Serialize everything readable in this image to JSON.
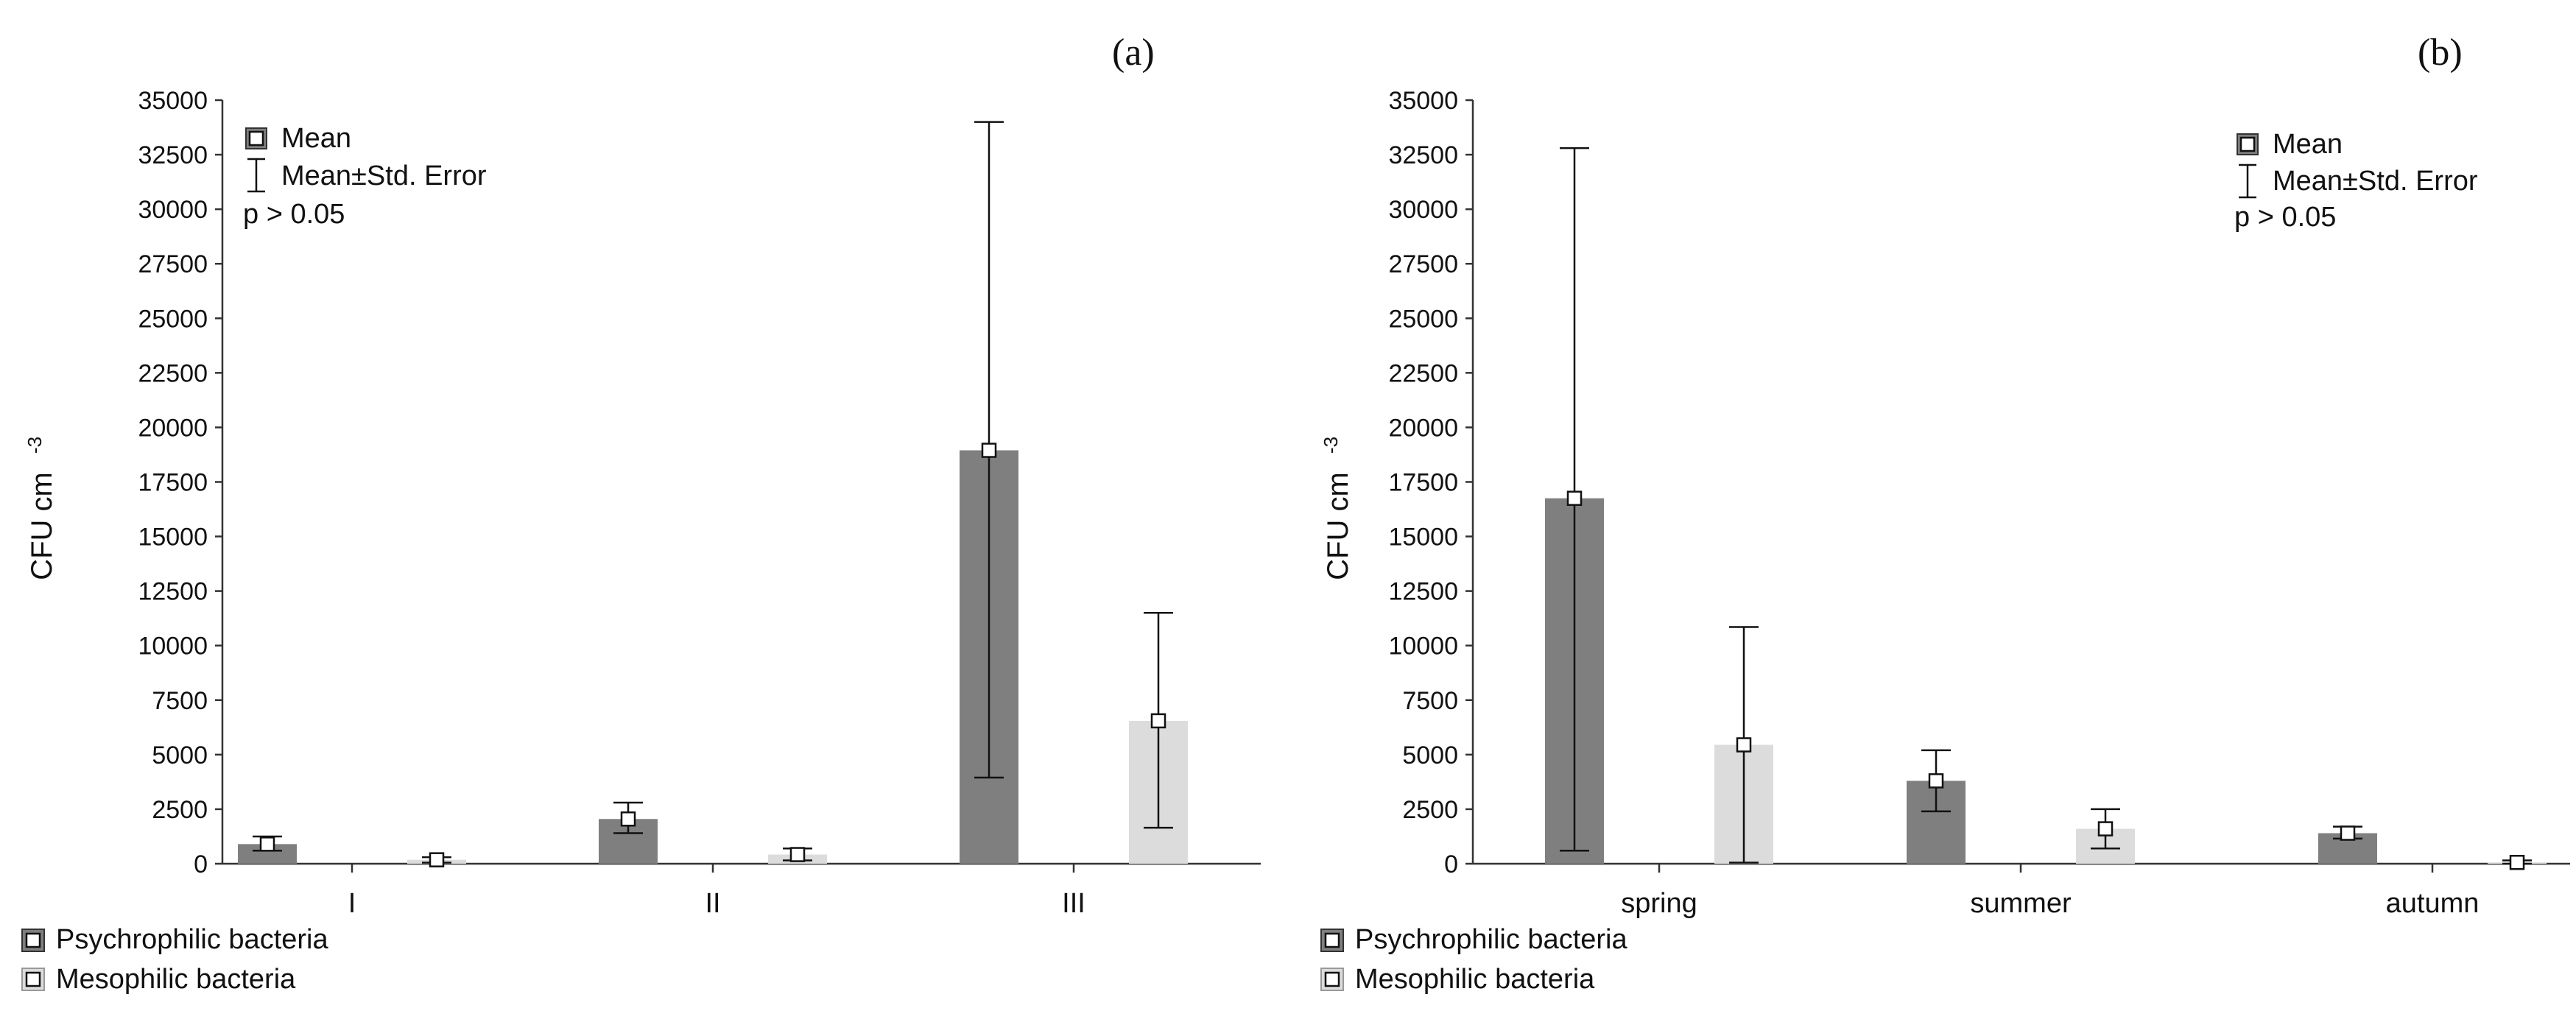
{
  "colors": {
    "psychrophilic": "#7f7f7f",
    "mesophilic": "#dcdcdc",
    "axis": "#333333",
    "text": "#111111"
  },
  "legend": {
    "psychrophilic": "Psychrophilic bacteria",
    "mesophilic": "Mesophilic bacteria"
  },
  "chart_data": [
    {
      "type": "bar",
      "panel_label": "(a)",
      "ylabel": "CFU cm",
      "ylabel_sup": "-3",
      "ylim": [
        0,
        35000
      ],
      "yticks": [
        "0",
        "2500",
        "5000",
        "7500",
        "10000",
        "12500",
        "15000",
        "17500",
        "20000",
        "22500",
        "25000",
        "27500",
        "30000",
        "32500",
        "35000"
      ],
      "categories": [
        "I",
        "II",
        "III"
      ],
      "series": [
        {
          "name": "Psychrophilic bacteria",
          "values": [
            900,
            2050,
            18950
          ],
          "err_low": [
            600,
            1400,
            3950
          ],
          "err_high": [
            1250,
            2800,
            34000
          ]
        },
        {
          "name": "Mesophilic bacteria",
          "values": [
            180,
            420,
            6550
          ],
          "err_low": [
            50,
            150,
            1650
          ],
          "err_high": [
            300,
            700,
            11500
          ]
        }
      ],
      "inset_legend": {
        "mean": "Mean",
        "se": "Mean±Std. Error",
        "note": "p > 0.05",
        "placement": "top-left"
      }
    },
    {
      "type": "bar",
      "panel_label": "(b)",
      "ylabel": "CFU cm",
      "ylabel_sup": "-3",
      "ylim": [
        0,
        35000
      ],
      "yticks": [
        "0",
        "2500",
        "5000",
        "7500",
        "10000",
        "12500",
        "15000",
        "17500",
        "20000",
        "22500",
        "25000",
        "27500",
        "30000",
        "32500",
        "35000"
      ],
      "categories": [
        "spring",
        "summer",
        "autumn"
      ],
      "series": [
        {
          "name": "Psychrophilic bacteria",
          "values": [
            16750,
            3800,
            1400
          ],
          "err_low": [
            600,
            2400,
            1150
          ],
          "err_high": [
            32800,
            5200,
            1700
          ]
        },
        {
          "name": "Mesophilic bacteria",
          "values": [
            5450,
            1600,
            60
          ],
          "err_low": [
            50,
            700,
            0
          ],
          "err_high": [
            10850,
            2500,
            150
          ]
        }
      ],
      "inset_legend": {
        "mean": "Mean",
        "se": "Mean±Std. Error",
        "note": "p > 0.05",
        "placement": "top-right"
      }
    }
  ]
}
